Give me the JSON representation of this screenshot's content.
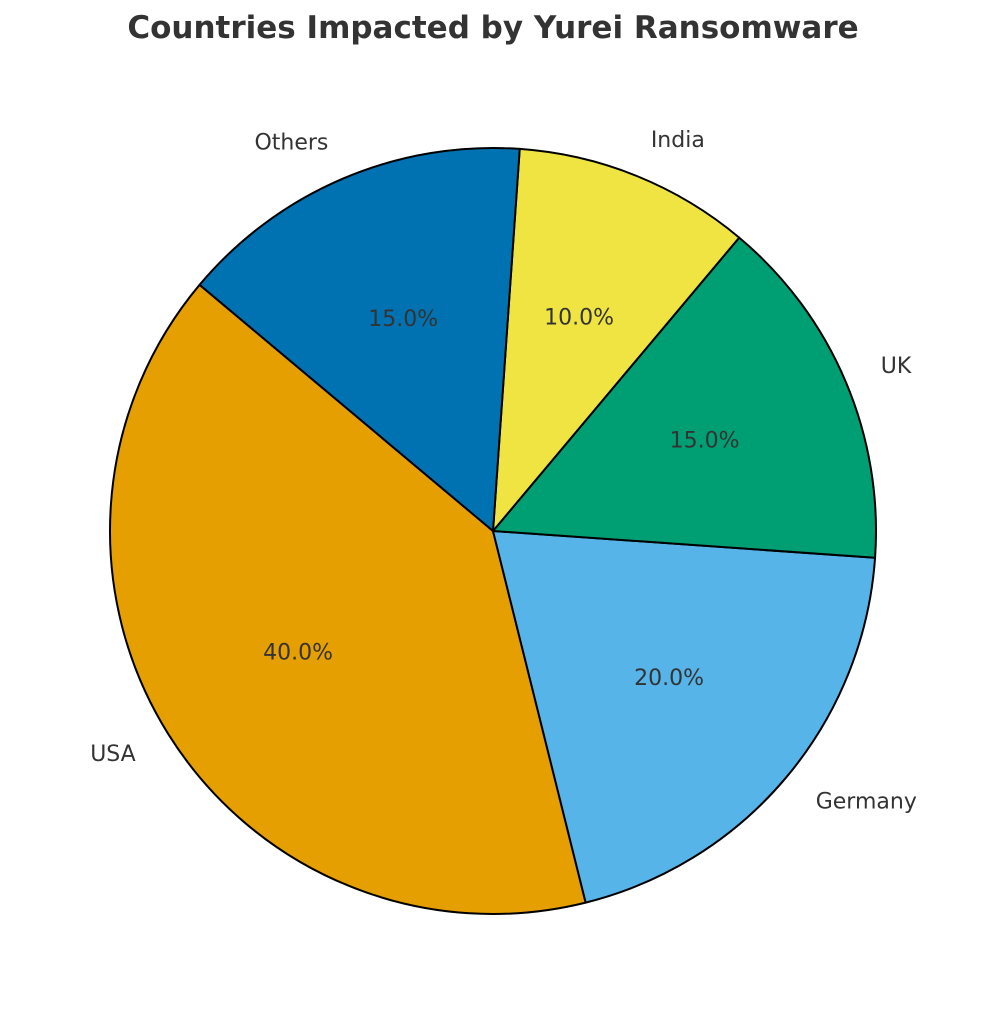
{
  "chart_data": {
    "type": "pie",
    "title": "Countries Impacted by Yurei Ransomware",
    "start_angle_deg": 140,
    "direction": "counterclockwise",
    "slices": [
      {
        "label": "USA",
        "value": 40.0,
        "pct_label": "40.0%",
        "color": "#E69F00"
      },
      {
        "label": "Germany",
        "value": 20.0,
        "pct_label": "20.0%",
        "color": "#56B4E9"
      },
      {
        "label": "UK",
        "value": 15.0,
        "pct_label": "15.0%",
        "color": "#009E73"
      },
      {
        "label": "India",
        "value": 10.0,
        "pct_label": "10.0%",
        "color": "#F0E442"
      },
      {
        "label": "Others",
        "value": 15.0,
        "pct_label": "15.0%",
        "color": "#0072B2"
      }
    ]
  }
}
